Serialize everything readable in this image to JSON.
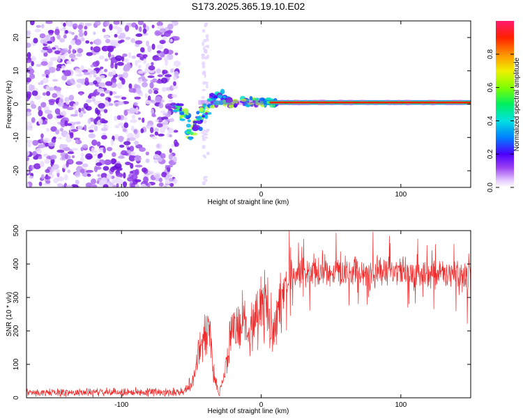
{
  "title": "S173.2025.365.19.10.E02",
  "chart_data": [
    {
      "type": "heatmap",
      "name": "spectrogram",
      "xlabel": "Height of straight line (km)",
      "ylabel": "Frequency (Hz)",
      "xlim": [
        -168,
        150
      ],
      "ylim": [
        -25,
        25
      ],
      "xticks": [
        -100,
        0,
        100
      ],
      "yticks": [
        -20,
        -10,
        0,
        10,
        20
      ],
      "colorbar": {
        "label": "Normalized spectral amplitude",
        "range": [
          0.0,
          1.0
        ],
        "ticks": [
          0.0,
          0.2,
          0.4,
          0.6,
          0.8
        ]
      },
      "noise_region_x": [
        -168,
        -60
      ],
      "ridge": {
        "frequency_hz": 0.5,
        "start_x": -45,
        "strong_from_x": 10,
        "end_x": 150
      }
    },
    {
      "type": "line",
      "name": "snr",
      "xlabel": "Height of straight line (km)",
      "ylabel": "SNR (10 * v/v)",
      "xlim": [
        -168,
        150
      ],
      "ylim": [
        0,
        500
      ],
      "xticks": [
        -100,
        0,
        100
      ],
      "yticks": [
        0,
        100,
        200,
        300,
        400,
        500
      ],
      "color": "#ee2a2a",
      "profile": [
        {
          "x": -168,
          "y": 15
        },
        {
          "x": -55,
          "y": 18
        },
        {
          "x": -48,
          "y": 60
        },
        {
          "x": -44,
          "y": 150
        },
        {
          "x": -40,
          "y": 190
        },
        {
          "x": -37,
          "y": 200
        },
        {
          "x": -34,
          "y": 70
        },
        {
          "x": -30,
          "y": 15
        },
        {
          "x": -27,
          "y": 50
        },
        {
          "x": -22,
          "y": 180
        },
        {
          "x": -15,
          "y": 230
        },
        {
          "x": -8,
          "y": 200
        },
        {
          "x": -5,
          "y": 250
        },
        {
          "x": 0,
          "y": 270
        },
        {
          "x": 5,
          "y": 260
        },
        {
          "x": 10,
          "y": 210
        },
        {
          "x": 15,
          "y": 310
        },
        {
          "x": 22,
          "y": 370
        },
        {
          "x": 40,
          "y": 380
        },
        {
          "x": 80,
          "y": 375
        },
        {
          "x": 150,
          "y": 365
        }
      ]
    }
  ]
}
